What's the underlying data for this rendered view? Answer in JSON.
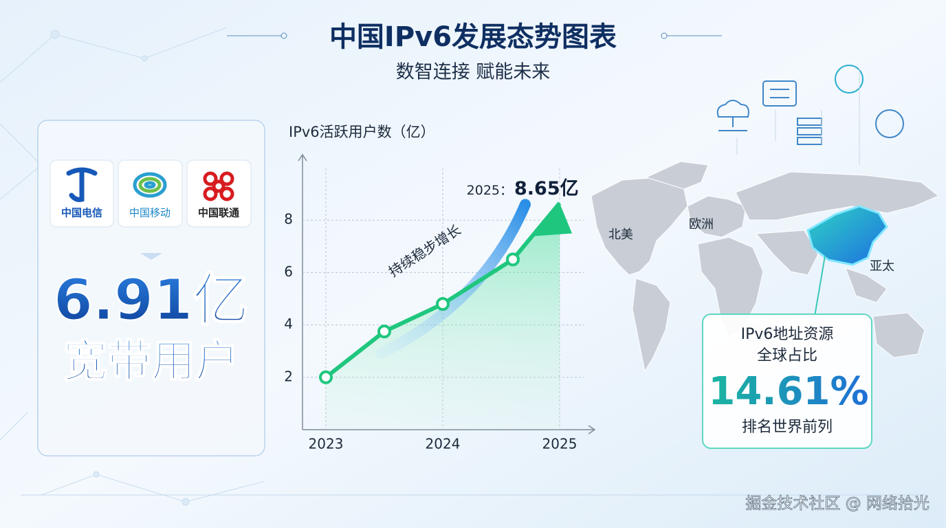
{
  "header": {
    "title": "中国IPv6发展态势图表",
    "subtitle": "数智连接 赋能未来"
  },
  "left_panel": {
    "logos": [
      "中国电信",
      "中国移动",
      "中国联通"
    ],
    "big_number": "6.91亿",
    "big_label": "宽带用户"
  },
  "chart_data": {
    "type": "line",
    "y_label": "IPv6活跃用户数（亿）",
    "x": [
      2023,
      2023.5,
      2024,
      2024.6,
      2025
    ],
    "values": [
      2,
      3.75,
      4.8,
      6.5,
      8.65
    ],
    "value_labels": [
      null,
      null,
      null,
      null,
      "8.65亿"
    ],
    "value_label_prefix": "2025：",
    "annotation": "持续稳步增长",
    "color": "#1fc77e",
    "xlim": [
      2022.8,
      2025.3
    ],
    "xticks": [
      2023,
      2024,
      2025
    ],
    "ylim": [
      0,
      10.5
    ],
    "yticks": [
      2,
      4,
      6,
      8
    ],
    "grid": true
  },
  "map": {
    "regions": [
      "北美",
      "欧洲",
      "亚太"
    ]
  },
  "info_box": {
    "line1": "IPv6地址资源",
    "line2": "全球占比",
    "value": "14.61%",
    "note": "排名世界前列"
  },
  "watermark": "掘金技术社区 @ 网络拾光"
}
